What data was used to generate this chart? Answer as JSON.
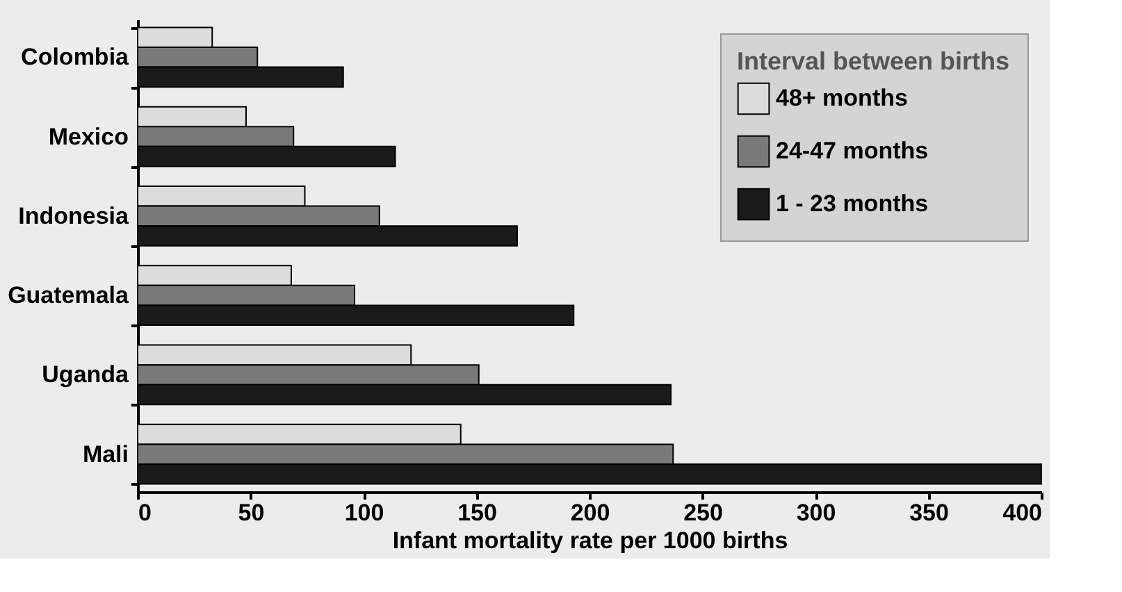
{
  "chart_data": {
    "type": "bar",
    "orientation": "horizontal",
    "xlabel": "Infant mortality rate per 1000 births",
    "legend_title": "Interval between births",
    "categories": [
      "Colombia",
      "Mexico",
      "Indonesia",
      "Guatemala",
      "Uganda",
      "Mali"
    ],
    "series": [
      {
        "name": "48+ months",
        "color": "#dcdcdc",
        "values": [
          33,
          48,
          74,
          68,
          121,
          143
        ]
      },
      {
        "name": "24-47 months",
        "color": "#7a7a7a",
        "values": [
          53,
          69,
          107,
          96,
          151,
          237
        ]
      },
      {
        "name": "1 - 23 months",
        "color": "#1a1a1a",
        "values": [
          91,
          114,
          168,
          193,
          236,
          400
        ]
      }
    ],
    "xlim": [
      0,
      400
    ],
    "xticks": [
      0,
      50,
      100,
      150,
      200,
      250,
      300,
      350,
      400
    ],
    "grid": false,
    "legend": "top right"
  }
}
